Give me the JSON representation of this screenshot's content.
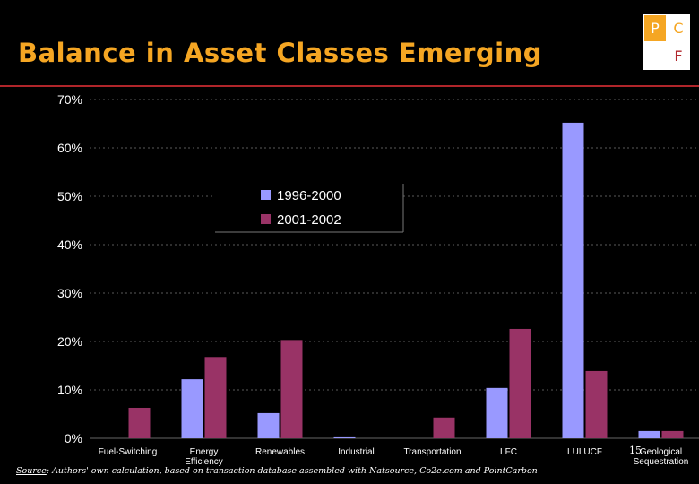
{
  "title": "Balance in Asset Classes Emerging",
  "logo": {
    "letters": [
      "P",
      "C",
      "F"
    ],
    "colors": {
      "orange": "#f5a623",
      "red": "#b0252a"
    }
  },
  "source": {
    "label": "Source",
    "text": ": Authors' own calculation, based on transaction database assembled with Natsource, Co2e.com and PointCarbon"
  },
  "page_number": "15",
  "chart_data": {
    "type": "bar",
    "categories": [
      "Fuel-Switching",
      "Energy Efficiency",
      "Renewables",
      "Industrial",
      "Transportation",
      "LFC",
      "LULUCF",
      "Geological Sequestration"
    ],
    "category_lines": [
      [
        "Fuel-Switching"
      ],
      [
        "Energy",
        "Efficiency"
      ],
      [
        "Renewables"
      ],
      [
        "Industrial"
      ],
      [
        "Transportation"
      ],
      [
        "LFC"
      ],
      [
        "LULUCF"
      ],
      [
        "Geological",
        "Sequestration"
      ]
    ],
    "series": [
      {
        "name": "1996-2000",
        "color": "#9999ff",
        "values": [
          0,
          12.2,
          5.2,
          0.2,
          0,
          10.4,
          65.2,
          1.5
        ]
      },
      {
        "name": "2001-2002",
        "color": "#993366",
        "values": [
          6.3,
          16.8,
          20.3,
          0,
          4.3,
          22.6,
          13.9,
          1.5
        ]
      }
    ],
    "y_ticks": [
      "0%",
      "10%",
      "20%",
      "30%",
      "40%",
      "50%",
      "60%",
      "70%"
    ],
    "ylim": [
      0,
      70
    ],
    "grid": true,
    "legend_position": "top-center"
  }
}
